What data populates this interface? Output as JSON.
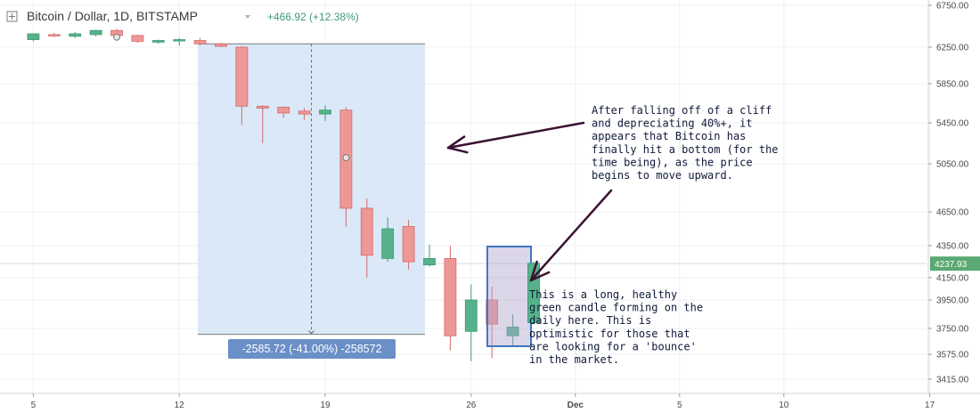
{
  "header": {
    "title": "Bitcoin / Dollar, 1D, BITSTAMP",
    "change": "+466.92 (+12.38%)"
  },
  "colors": {
    "up": "#56b28a",
    "down": "#ee9797",
    "up_edge": "#3f9a74",
    "down_edge": "#d46a6a",
    "measure_fill": "#dbe8f7",
    "measure_label_bg": "#6b8fc7",
    "highlight_border": "#3f78c0",
    "arrow": "#3a1232"
  },
  "chart_data": {
    "type": "candlestick",
    "y_axis": {
      "ticks": [
        "6750.00",
        "6250.00",
        "5850.00",
        "5450.00",
        "5050.00",
        "4650.00",
        "4350.00",
        "4150.00",
        "3950.00",
        "3750.00",
        "3575.00",
        "3415.00"
      ],
      "current_price": "4237.93"
    },
    "x_axis": {
      "ticks": [
        {
          "label": "5",
          "day": 5
        },
        {
          "label": "12",
          "day": 12
        },
        {
          "label": "19",
          "day": 19
        },
        {
          "label": "26",
          "day": 26
        },
        {
          "label": "Dec",
          "day": 31
        },
        {
          "label": "5",
          "day": 36
        },
        {
          "label": "10",
          "day": 41
        },
        {
          "label": "17",
          "day": 48
        }
      ]
    },
    "candles": [
      {
        "day": 5,
        "open": 6340,
        "high": 6400,
        "low": 6320,
        "close": 6410
      },
      {
        "day": 6,
        "open": 6400,
        "high": 6420,
        "low": 6370,
        "close": 6390
      },
      {
        "day": 7,
        "open": 6380,
        "high": 6430,
        "low": 6360,
        "close": 6410
      },
      {
        "day": 8,
        "open": 6400,
        "high": 6460,
        "low": 6380,
        "close": 6450
      },
      {
        "day": 9,
        "open": 6450,
        "high": 6470,
        "low": 6350,
        "close": 6390
      },
      {
        "day": 10,
        "open": 6390,
        "high": 6400,
        "low": 6300,
        "close": 6320
      },
      {
        "day": 11,
        "open": 6310,
        "high": 6340,
        "low": 6290,
        "close": 6330
      },
      {
        "day": 12,
        "open": 6330,
        "high": 6360,
        "low": 6270,
        "close": 6340
      },
      {
        "day": 13,
        "open": 6330,
        "high": 6360,
        "low": 6270,
        "close": 6290
      },
      {
        "day": 14,
        "open": 6290,
        "high": 6300,
        "low": 6250,
        "close": 6260
      },
      {
        "day": 15,
        "open": 6250,
        "high": 6260,
        "low": 5430,
        "close": 5620
      },
      {
        "day": 16,
        "open": 5620,
        "high": 5630,
        "low": 5250,
        "close": 5600
      },
      {
        "day": 17,
        "open": 5610,
        "high": 5620,
        "low": 5500,
        "close": 5550
      },
      {
        "day": 18,
        "open": 5570,
        "high": 5600,
        "low": 5480,
        "close": 5540
      },
      {
        "day": 19,
        "open": 5540,
        "high": 5630,
        "low": 5470,
        "close": 5580
      },
      {
        "day": 20,
        "open": 5580,
        "high": 5610,
        "low": 4520,
        "close": 4680
      },
      {
        "day": 21,
        "open": 4680,
        "high": 4760,
        "low": 4150,
        "close": 4290
      },
      {
        "day": 22,
        "open": 4270,
        "high": 4600,
        "low": 4250,
        "close": 4500
      },
      {
        "day": 23,
        "open": 4520,
        "high": 4580,
        "low": 4200,
        "close": 4250
      },
      {
        "day": 24,
        "open": 4230,
        "high": 4360,
        "low": 4220,
        "close": 4270
      },
      {
        "day": 25,
        "open": 4270,
        "high": 4350,
        "low": 3600,
        "close": 3700
      },
      {
        "day": 26,
        "open": 3730,
        "high": 4090,
        "low": 3530,
        "close": 3950
      },
      {
        "day": 27,
        "open": 3950,
        "high": 4070,
        "low": 3550,
        "close": 3780
      },
      {
        "day": 28,
        "open": 3700,
        "high": 3850,
        "low": 3630,
        "close": 3760
      },
      {
        "day": 29,
        "open": 3790,
        "high": 4250,
        "low": 3780,
        "close": 4240
      }
    ],
    "measure_label": "-2585.72 (-41.00%) -258572"
  },
  "annotations": {
    "top_note": [
      "After falling off of a cliff",
      "and depreciating 40%+, it",
      "appears that Bitcoin has",
      "finally hit a bottom (for the",
      "time being), as the price",
      "begins to move upward."
    ],
    "bottom_note": [
      "This is a long, healthy",
      "green candle forming on the",
      "daily here. This is",
      "optimistic for those that",
      "are looking for a 'bounce'",
      "in the market."
    ]
  }
}
